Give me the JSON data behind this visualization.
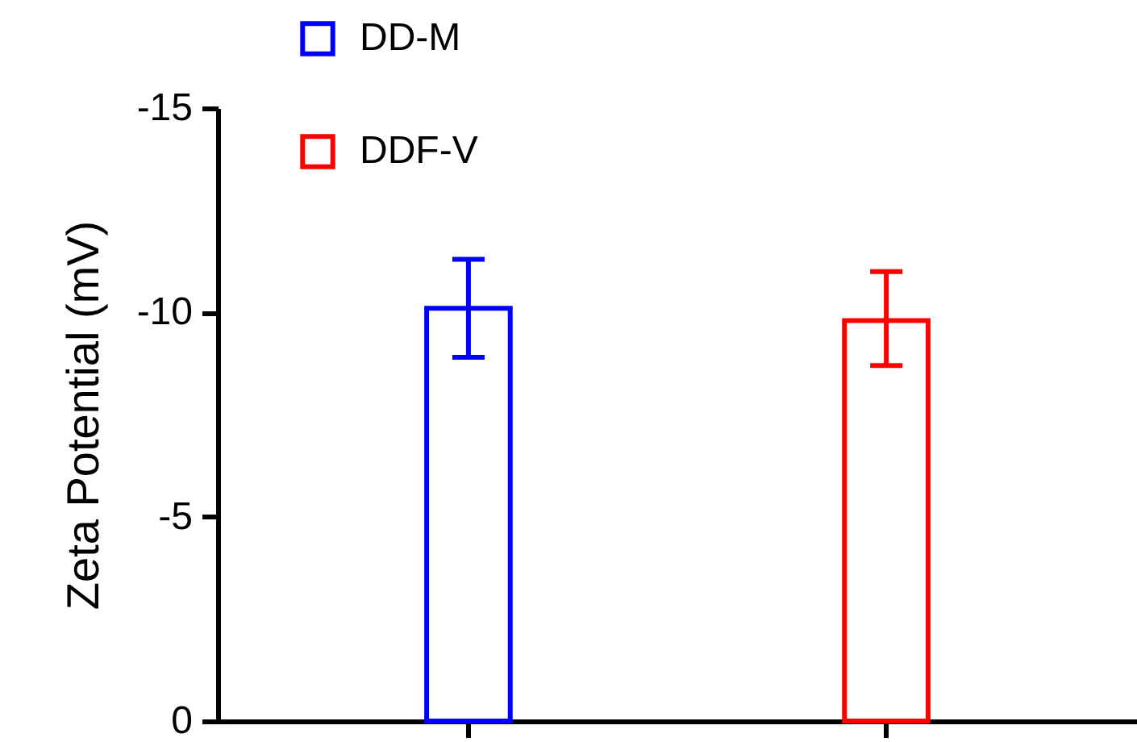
{
  "chart_data": {
    "type": "bar",
    "ylabel": "Zeta Potential (mV)",
    "categories": [
      null,
      null
    ],
    "series": [
      {
        "name": "DD-M",
        "color": "#0000ff",
        "values": [
          -10.1,
          null
        ],
        "errors": [
          [
            -11.3,
            -8.9
          ],
          null
        ]
      },
      {
        "name": "DDF-V",
        "color": "#ff0000",
        "values": [
          null,
          -9.8
        ],
        "errors": [
          null,
          [
            -11,
            -8.7
          ]
        ]
      }
    ],
    "ylim": [
      0,
      -15
    ],
    "yticks": [
      0,
      -5,
      -10,
      -15
    ],
    "grid": false,
    "legend": "top left",
    "tick_labels": "y"
  }
}
